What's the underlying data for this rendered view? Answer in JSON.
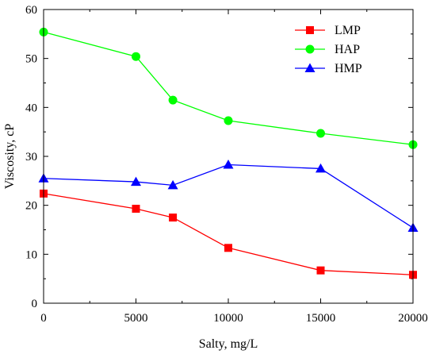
{
  "chart_data": {
    "type": "line",
    "xlabel": "Salty, mg/L",
    "ylabel": "Viscosity, cP",
    "xlim": [
      0,
      20000
    ],
    "ylim": [
      0,
      60
    ],
    "x_ticks": [
      0,
      5000,
      10000,
      15000,
      20000
    ],
    "y_ticks": [
      0,
      10,
      20,
      30,
      40,
      50,
      60
    ],
    "grid": false,
    "legend_position": "top-right",
    "x": [
      0,
      5000,
      7000,
      10000,
      15000,
      20000
    ],
    "series": [
      {
        "name": "LMP",
        "color": "#ff0000",
        "marker": "square",
        "values": [
          22.4,
          19.3,
          17.5,
          11.3,
          6.7,
          5.8
        ]
      },
      {
        "name": "HAP",
        "color": "#00ff00",
        "marker": "circle",
        "values": [
          55.4,
          50.4,
          41.5,
          37.3,
          34.7,
          32.4
        ]
      },
      {
        "name": "HMP",
        "color": "#0000ff",
        "marker": "triangle",
        "values": [
          25.5,
          24.8,
          24.1,
          28.3,
          27.5,
          15.4
        ]
      }
    ]
  }
}
